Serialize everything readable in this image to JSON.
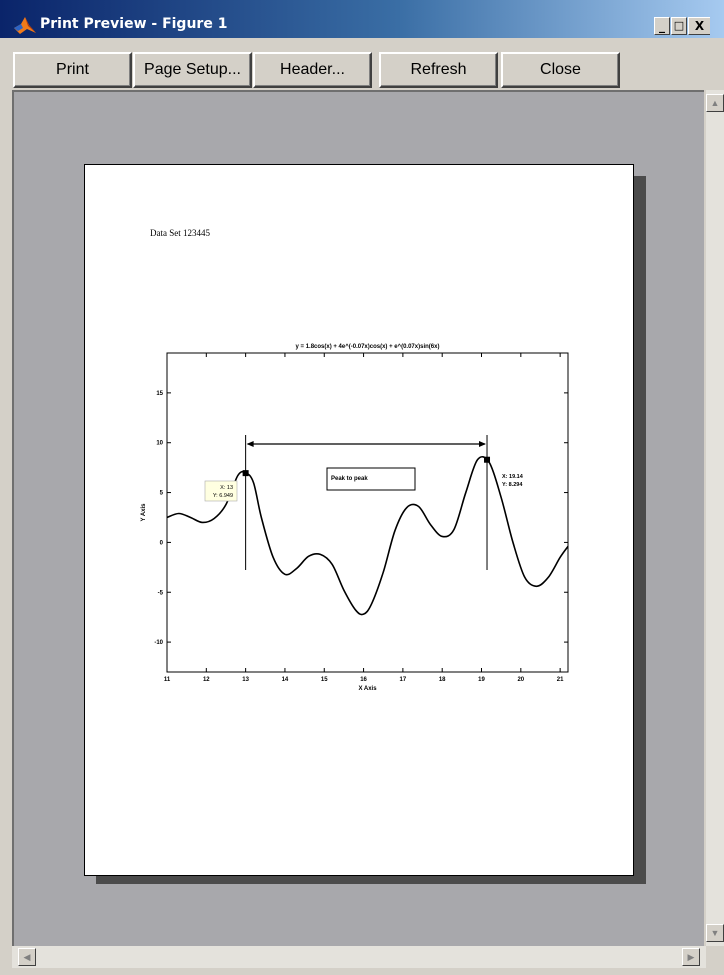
{
  "window": {
    "title": "Print Preview - Figure 1",
    "controls": {
      "minimize": "_",
      "maximize": "□",
      "close": "X"
    }
  },
  "toolbar": {
    "print_label": "Print",
    "page_setup_label": "Page Setup...",
    "header_label": "Header...",
    "refresh_label": "Refresh",
    "close_label": "Close"
  },
  "page": {
    "header_text": "Data Set 123445"
  },
  "chart_data": {
    "type": "line",
    "title": "y = 1.8cos(x) + 4e^(-0.07x)cos(x) + e^(0.07x)sin(6x)",
    "xlabel": "X Axis",
    "ylabel": "Y Axis",
    "xlim": [
      11,
      21.2
    ],
    "ylim": [
      -13,
      19
    ],
    "xticks": [
      11,
      12,
      13,
      14,
      15,
      16,
      17,
      18,
      19,
      20,
      21
    ],
    "yticks": [
      -10,
      -5,
      0,
      5,
      10,
      15
    ],
    "series": [
      {
        "x": [
          11,
          11.3,
          11.6,
          11.9,
          12.2,
          12.5,
          12.8,
          13.0,
          13.2,
          13.4,
          13.7,
          14.0,
          14.3,
          14.6,
          14.9,
          15.2,
          15.5,
          15.8,
          16.0,
          16.2,
          16.5,
          16.8,
          17.1,
          17.4,
          17.7,
          18.0,
          18.3,
          18.6,
          18.9,
          19.2,
          19.5,
          19.8,
          20.1,
          20.4,
          20.7,
          21.0,
          21.2
        ],
        "y": [
          2.5,
          2.9,
          2.5,
          2.0,
          2.4,
          3.8,
          6.7,
          7.0,
          6.0,
          2.5,
          -1.5,
          -3.2,
          -2.6,
          -1.4,
          -1.2,
          -2.2,
          -4.8,
          -6.8,
          -7.2,
          -6.2,
          -3.0,
          1.2,
          3.5,
          3.6,
          1.8,
          0.6,
          1.3,
          5.0,
          8.3,
          8.0,
          4.5,
          0.0,
          -3.5,
          -4.4,
          -3.5,
          -1.5,
          -0.4
        ]
      }
    ],
    "annotations": {
      "datatip_left": [
        "X: 13",
        "Y: 6.949"
      ],
      "datatip_right": [
        "X: 19.14",
        "Y: 8.294"
      ],
      "textbox": "Peak to peak"
    }
  }
}
